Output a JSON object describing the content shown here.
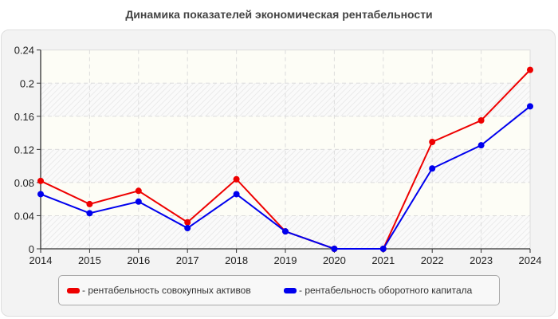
{
  "title": "Динамика показателей экономическая рентабельности",
  "colors": {
    "series_red": "#ee0000",
    "series_blue": "#0000ee",
    "panel_bg": "#f3f3f3",
    "band_light": "#fdfdf6",
    "grid": "#dcdcdc"
  },
  "legend": {
    "items": [
      {
        "label": "- рентабельность совокупных активов",
        "color": "#ee0000"
      },
      {
        "label": "- рентабельность оборотного капитала",
        "color": "#0000ee"
      }
    ]
  },
  "chart_data": {
    "type": "line",
    "title": "Динамика показателей экономическая рентабельности",
    "xlabel": "",
    "ylabel": "",
    "categories": [
      "2014",
      "2015",
      "2016",
      "2017",
      "2018",
      "2019",
      "2020",
      "2021",
      "2022",
      "2023",
      "2024"
    ],
    "series": [
      {
        "name": "рентабельность совокупных активов",
        "color": "#ee0000",
        "values": [
          0.082,
          0.054,
          0.07,
          0.032,
          0.084,
          0.021,
          0,
          0,
          0.129,
          0.155,
          0.216
        ]
      },
      {
        "name": "рентабельность оборотного капитала",
        "color": "#0000ee",
        "values": [
          0.066,
          0.043,
          0.057,
          0.025,
          0.066,
          0.021,
          0,
          0,
          0.097,
          0.125,
          0.172
        ]
      }
    ],
    "yticks": [
      "0",
      "0.04",
      "0.08",
      "0.12",
      "0.16",
      "0.2",
      "0.24"
    ],
    "ylim": [
      0,
      0.24
    ],
    "grid": true,
    "legend_position": "bottom"
  }
}
